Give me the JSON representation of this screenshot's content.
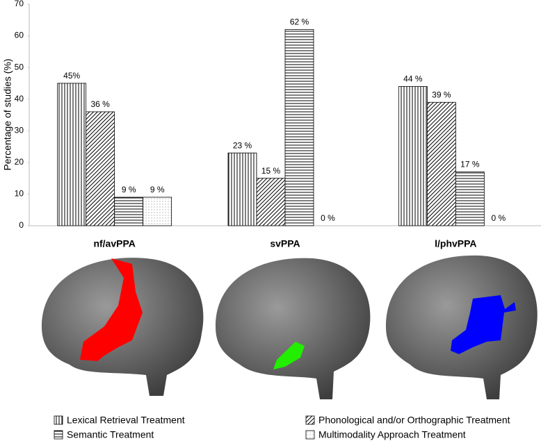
{
  "chart_data": {
    "type": "bar",
    "y_label": "Percentage of studies (%)",
    "categories": [
      "nf/avPPA",
      "svPPA",
      "l/phvPPA"
    ],
    "series": [
      {
        "name": "Lexical Retrieval Treatment",
        "pattern": "vertical",
        "values": [
          45,
          23,
          44
        ],
        "value_labels": [
          "45%",
          "23 %",
          "44 %"
        ]
      },
      {
        "name": "Phonological and/or Orthographic Treatment",
        "pattern": "diagonal",
        "values": [
          36,
          15,
          39
        ],
        "value_labels": [
          "36 %",
          "15 %",
          "39 %"
        ]
      },
      {
        "name": "Semantic Treatment",
        "pattern": "horizontal",
        "values": [
          9,
          62,
          17
        ],
        "value_labels": [
          "9 %",
          "62 %",
          "17 %"
        ]
      },
      {
        "name": "Multimodality Approach Treatment",
        "pattern": "dots",
        "values": [
          9,
          0,
          0
        ],
        "value_labels": [
          "9 %",
          "0 %",
          "0 %"
        ]
      }
    ],
    "ylim": [
      0,
      70
    ],
    "yticks": [
      0,
      10,
      20,
      30,
      40,
      50,
      60,
      70
    ]
  }
}
